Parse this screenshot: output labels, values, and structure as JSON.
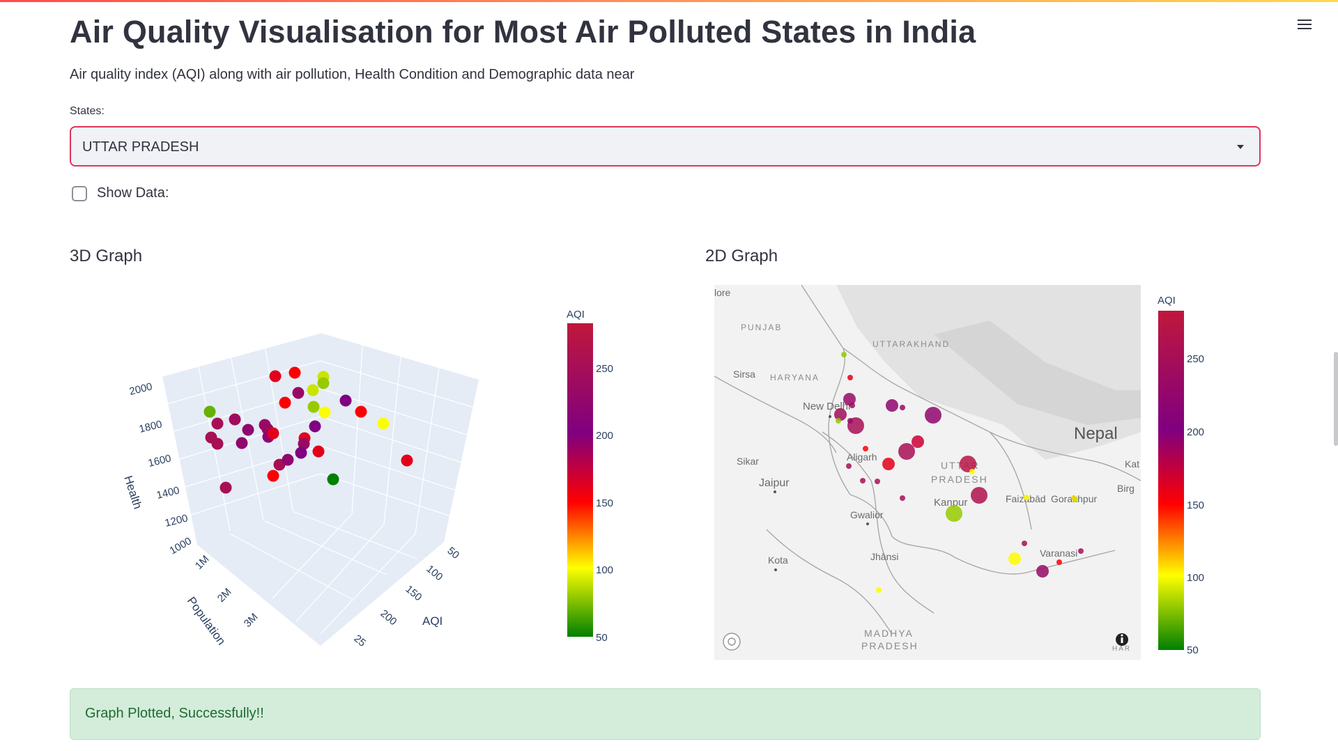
{
  "page": {
    "title": "Air Quality Visualisation for Most Air Polluted States in India",
    "subtitle": "Air quality index (AQI) along with air pollution, Health Condition and Demographic data near",
    "menu_icon": "hamburger-icon"
  },
  "states_select": {
    "label": "States:",
    "value": "UTTAR PRADESH"
  },
  "show_data": {
    "label": "Show Data:",
    "checked": false
  },
  "graph3d": {
    "heading": "3D Graph",
    "colorbar_title": "AQI",
    "colorbar_ticks": [
      "250",
      "200",
      "150",
      "100",
      "50"
    ],
    "health_axis": {
      "label": "Health",
      "ticks": [
        "2000",
        "1800",
        "1600",
        "1400",
        "1200",
        "1000"
      ]
    },
    "population_axis": {
      "label": "Population",
      "ticks": [
        "1M",
        "2M",
        "3M"
      ]
    },
    "aqi_axis": {
      "label": "AQI",
      "ticks": [
        "50",
        "100",
        "150",
        "200",
        "25"
      ]
    }
  },
  "graph2d": {
    "heading": "2D Graph",
    "colorbar_title": "AQI",
    "colorbar_ticks": [
      "250",
      "200",
      "150",
      "100",
      "50"
    ],
    "map_labels": {
      "punjab": "PUNJAB",
      "uttarakhand": "UTTARAKHAND",
      "sirsa": "Sirsa",
      "haryana": "HARYANA",
      "new_delhi": "New Delhi",
      "aligarh": "Aligarh",
      "sikar": "Sikar",
      "jaipur": "Jaipur",
      "uttar": "UTTAR",
      "pradesh": "PRADESH",
      "kanpur": "Kanpur",
      "gwalior": "Gwalior",
      "faizabad": "Faizābād",
      "gorakhpur": "Gorakhpur",
      "nepal": "Nepal",
      "kota": "Kota",
      "jhansi": "Jhānsi",
      "varanasi": "Varanasi",
      "madhya": "MADHYA",
      "mp_pradesh": "PRADESH",
      "kat": "Kat",
      "birg": "Birg",
      "lore": "lore",
      "har": "HAR"
    }
  },
  "status": {
    "message": "Graph Plotted, Successfully!!"
  },
  "chart_data": [
    {
      "type": "scatter",
      "title": "3D Graph",
      "xlabel": "Population",
      "ylabel": "AQI",
      "zlabel": "Health",
      "color_by": "AQI",
      "colorscale": [
        "#008000",
        "#ffff00",
        "#ff0000",
        "#800080",
        "#c0183c"
      ],
      "color_range": [
        50,
        280
      ],
      "ylim": [
        50,
        280
      ],
      "zlim": [
        1000,
        2000
      ],
      "points": [
        {
          "aqi": 160
        },
        {
          "aqi": 150
        },
        {
          "aqi": 90
        },
        {
          "aqi": 80
        },
        {
          "aqi": 230
        },
        {
          "aqi": 150
        },
        {
          "aqi": 90
        },
        {
          "aqi": 200
        },
        {
          "aqi": 150
        },
        {
          "aqi": 100
        },
        {
          "aqi": 70
        },
        {
          "aqi": 250
        },
        {
          "aqi": 240
        },
        {
          "aqi": 220
        },
        {
          "aqi": 230
        },
        {
          "aqi": 250
        },
        {
          "aqi": 250
        },
        {
          "aqi": 220
        },
        {
          "aqi": 230
        },
        {
          "aqi": 220
        },
        {
          "aqi": 200
        },
        {
          "aqi": 160
        },
        {
          "aqi": 160
        },
        {
          "aqi": 100
        },
        {
          "aqi": 80
        },
        {
          "aqi": 230
        },
        {
          "aqi": 200
        },
        {
          "aqi": 160
        },
        {
          "aqi": 250
        },
        {
          "aqi": 160
        },
        {
          "aqi": 150
        },
        {
          "aqi": 50
        },
        {
          "aqi": 250
        },
        {
          "aqi": 220
        }
      ]
    },
    {
      "type": "scatter",
      "title": "2D Graph",
      "color_by": "AQI",
      "colorscale": [
        "#008000",
        "#ffff00",
        "#ff0000",
        "#800080",
        "#c0183c"
      ],
      "color_range": [
        50,
        280
      ],
      "points": [
        {
          "aqi": 80,
          "size": "small"
        },
        {
          "aqi": 160,
          "size": "small"
        },
        {
          "aqi": 230,
          "size": "medium"
        },
        {
          "aqi": 240,
          "size": "medium"
        },
        {
          "aqi": 80,
          "size": "small"
        },
        {
          "aqi": 250,
          "size": "large"
        },
        {
          "aqi": 230,
          "size": "small"
        },
        {
          "aqi": 240,
          "size": "small"
        },
        {
          "aqi": 220,
          "size": "medium"
        },
        {
          "aqi": 230,
          "size": "small"
        },
        {
          "aqi": 220,
          "size": "large"
        },
        {
          "aqi": 150,
          "size": "small"
        },
        {
          "aqi": 250,
          "size": "small"
        },
        {
          "aqi": 160,
          "size": "medium"
        },
        {
          "aqi": 250,
          "size": "large"
        },
        {
          "aqi": 270,
          "size": "large"
        },
        {
          "aqi": 100,
          "size": "small"
        },
        {
          "aqi": 260,
          "size": "large"
        },
        {
          "aqi": 80,
          "size": "large"
        },
        {
          "aqi": 170,
          "size": "medium"
        },
        {
          "aqi": 250,
          "size": "small"
        },
        {
          "aqi": 250,
          "size": "small"
        },
        {
          "aqi": 250,
          "size": "small"
        },
        {
          "aqi": 100,
          "size": "small"
        },
        {
          "aqi": 110,
          "size": "small"
        },
        {
          "aqi": 100,
          "size": "medium"
        },
        {
          "aqi": 150,
          "size": "small"
        },
        {
          "aqi": 230,
          "size": "medium"
        },
        {
          "aqi": 250,
          "size": "small"
        },
        {
          "aqi": 100,
          "size": "small"
        },
        {
          "aqi": 250,
          "size": "small"
        },
        {
          "aqi": 90,
          "size": "small"
        }
      ]
    }
  ]
}
